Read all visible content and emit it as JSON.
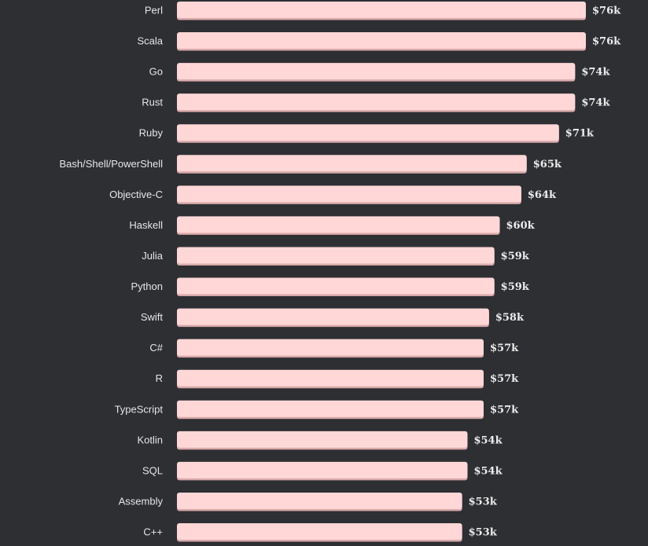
{
  "chart_data": {
    "type": "bar",
    "orientation": "horizontal",
    "categories": [
      "Perl",
      "Scala",
      "Go",
      "Rust",
      "Ruby",
      "Bash/Shell/PowerShell",
      "Objective-C",
      "Haskell",
      "Julia",
      "Python",
      "Swift",
      "C#",
      "R",
      "TypeScript",
      "Kotlin",
      "SQL",
      "Assembly",
      "C++"
    ],
    "values": [
      76,
      76,
      74,
      74,
      71,
      65,
      64,
      60,
      59,
      59,
      58,
      57,
      57,
      57,
      54,
      54,
      53,
      53
    ],
    "value_labels": [
      "$76k",
      "$76k",
      "$74k",
      "$74k",
      "$71k",
      "$65k",
      "$64k",
      "$60k",
      "$59k",
      "$59k",
      "$58k",
      "$57k",
      "$57k",
      "$57k",
      "$54k",
      "$54k",
      "$53k",
      "$53k"
    ],
    "title": "",
    "xlabel": "",
    "ylabel": "",
    "xlim": [
      0,
      76
    ],
    "grid": false,
    "legend": "none",
    "colors": {
      "background": "#2d2f33",
      "bar_fill": "#ffd7d7",
      "bar_shadow": "#d9a9a9",
      "label_text": "#e6e6e6",
      "value_text": "#ececec"
    }
  }
}
